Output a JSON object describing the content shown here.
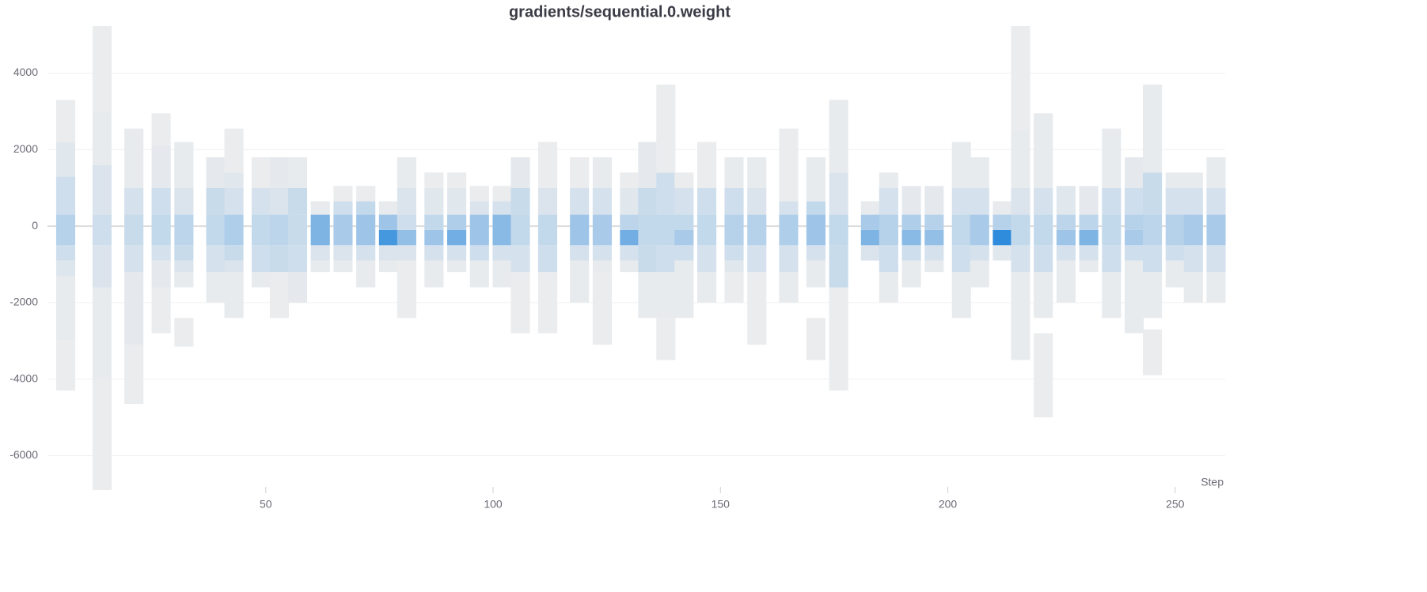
{
  "chart_data": {
    "type": "histogram-heatmap",
    "title": "gradients/sequential.0.weight",
    "x_label": "Step",
    "xlim": [
      2,
      261
    ],
    "xticks": [
      50,
      100,
      150,
      200,
      250
    ],
    "ylim": [
      -6900,
      5230
    ],
    "yticks": [
      4000,
      2000,
      0,
      -2000,
      -4000,
      -6000
    ],
    "grid": true,
    "color_scale": [
      "#eeeeee",
      "#a9cbe9",
      "#2f8bdb"
    ],
    "columns": [
      {
        "step": 6,
        "bins": [
          -4300,
          -3000,
          -1300,
          -900,
          -500,
          300,
          1300,
          2200,
          3300
        ],
        "counts": [
          1,
          2,
          5,
          10,
          18,
          10,
          4,
          1
        ]
      },
      {
        "step": 14,
        "bins": [
          -6900,
          -4000,
          -1600,
          -500,
          300,
          1600,
          3000,
          5230
        ],
        "counts": [
          1,
          2,
          6,
          10,
          6,
          2,
          1
        ]
      },
      {
        "step": 21,
        "bins": [
          -4650,
          -3100,
          -1200,
          -500,
          300,
          1000,
          2550
        ],
        "counts": [
          1,
          3,
          8,
          12,
          8,
          2
        ]
      },
      {
        "step": 27,
        "bins": [
          -2800,
          -1600,
          -900,
          -500,
          300,
          1000,
          2100,
          2950
        ],
        "counts": [
          1,
          3,
          8,
          14,
          10,
          3,
          1
        ]
      },
      {
        "step": 32,
        "bins": [
          -3150,
          -2400,
          -1600,
          -1200,
          -900,
          -500,
          300,
          1000,
          2200
        ],
        "counts": [
          1,
          0,
          2,
          6,
          12,
          16,
          6,
          2
        ]
      },
      {
        "step": 39,
        "bins": [
          -2000,
          -1200,
          -500,
          300,
          1000,
          1800
        ],
        "counts": [
          2,
          8,
          14,
          12,
          3
        ]
      },
      {
        "step": 43,
        "bins": [
          -2400,
          -1200,
          -900,
          -500,
          300,
          1000,
          1400,
          2550
        ],
        "counts": [
          2,
          6,
          12,
          20,
          8,
          4,
          1
        ]
      },
      {
        "step": 49,
        "bins": [
          -1600,
          -1200,
          -500,
          300,
          1000,
          1800
        ],
        "counts": [
          2,
          10,
          14,
          8,
          1
        ]
      },
      {
        "step": 53,
        "bins": [
          -2400,
          -1200,
          -500,
          300,
          1000,
          1800
        ],
        "counts": [
          1,
          12,
          16,
          6,
          3
        ]
      },
      {
        "step": 57,
        "bins": [
          -2000,
          -1200,
          -500,
          300,
          1000,
          1800
        ],
        "counts": [
          3,
          10,
          12,
          12,
          2
        ]
      },
      {
        "step": 62,
        "bins": [
          -1200,
          -900,
          -500,
          300,
          650
        ],
        "counts": [
          2,
          6,
          30,
          2
        ]
      },
      {
        "step": 67,
        "bins": [
          -1200,
          -900,
          -500,
          300,
          650,
          1050
        ],
        "counts": [
          2,
          6,
          22,
          10,
          1
        ]
      },
      {
        "step": 72,
        "bins": [
          -1600,
          -900,
          -500,
          300,
          650,
          1050
        ],
        "counts": [
          2,
          8,
          24,
          14,
          1
        ]
      },
      {
        "step": 77,
        "bins": [
          -1200,
          -900,
          -500,
          -100,
          300,
          650
        ],
        "counts": [
          2,
          6,
          40,
          24,
          2
        ]
      },
      {
        "step": 81,
        "bins": [
          -2400,
          -900,
          -500,
          -100,
          300,
          1000,
          1800
        ],
        "counts": [
          1,
          6,
          26,
          10,
          6,
          2
        ]
      },
      {
        "step": 87,
        "bins": [
          -1600,
          -900,
          -500,
          -100,
          300,
          1000,
          1400
        ],
        "counts": [
          2,
          8,
          24,
          14,
          4,
          1
        ]
      },
      {
        "step": 92,
        "bins": [
          -1200,
          -900,
          -500,
          -100,
          300,
          1000,
          1400
        ],
        "counts": [
          2,
          8,
          32,
          20,
          4,
          1
        ]
      },
      {
        "step": 97,
        "bins": [
          -1600,
          -900,
          -500,
          300,
          650,
          1050
        ],
        "counts": [
          2,
          10,
          24,
          6,
          1
        ]
      },
      {
        "step": 102,
        "bins": [
          -1600,
          -900,
          -500,
          300,
          650,
          1050
        ],
        "counts": [
          2,
          8,
          28,
          8,
          1
        ]
      },
      {
        "step": 106,
        "bins": [
          -2800,
          -1200,
          -500,
          300,
          1000,
          1800
        ],
        "counts": [
          1,
          8,
          14,
          12,
          3
        ]
      },
      {
        "step": 112,
        "bins": [
          -2800,
          -1200,
          -500,
          300,
          1000,
          2200
        ],
        "counts": [
          1,
          10,
          14,
          6,
          1
        ]
      },
      {
        "step": 119,
        "bins": [
          -2000,
          -900,
          -500,
          300,
          1000,
          1800
        ],
        "counts": [
          2,
          8,
          24,
          8,
          1
        ]
      },
      {
        "step": 124,
        "bins": [
          -3100,
          -1200,
          -900,
          -500,
          300,
          1000,
          1800
        ],
        "counts": [
          1,
          2,
          8,
          22,
          8,
          2
        ]
      },
      {
        "step": 130,
        "bins": [
          -1200,
          -900,
          -500,
          -100,
          300,
          1000,
          1400
        ],
        "counts": [
          2,
          8,
          32,
          16,
          4,
          1
        ]
      },
      {
        "step": 134,
        "bins": [
          -2400,
          -1200,
          -500,
          300,
          1000,
          2200
        ],
        "counts": [
          2,
          12,
          14,
          12,
          3
        ]
      },
      {
        "step": 138,
        "bins": [
          -3500,
          -2400,
          -1200,
          -500,
          300,
          1400,
          3700
        ],
        "counts": [
          1,
          2,
          10,
          14,
          10,
          1
        ]
      },
      {
        "step": 142,
        "bins": [
          -2400,
          -900,
          -500,
          -100,
          300,
          1000,
          1400
        ],
        "counts": [
          2,
          10,
          22,
          14,
          8,
          1
        ]
      },
      {
        "step": 147,
        "bins": [
          -2000,
          -1200,
          -500,
          300,
          1000,
          2200
        ],
        "counts": [
          2,
          8,
          14,
          10,
          1
        ]
      },
      {
        "step": 153,
        "bins": [
          -2000,
          -1200,
          -900,
          -500,
          300,
          1000,
          1800
        ],
        "counts": [
          1,
          4,
          10,
          18,
          10,
          2
        ]
      },
      {
        "step": 158,
        "bins": [
          -3100,
          -1200,
          -500,
          300,
          1000,
          1800
        ],
        "counts": [
          1,
          8,
          18,
          6,
          2
        ]
      },
      {
        "step": 165,
        "bins": [
          -2000,
          -1200,
          -500,
          300,
          650,
          2550
        ],
        "counts": [
          2,
          8,
          20,
          8,
          1
        ]
      },
      {
        "step": 171,
        "bins": [
          -3500,
          -2400,
          -1600,
          -900,
          -500,
          300,
          650,
          1800
        ],
        "counts": [
          1,
          0,
          2,
          8,
          24,
          14,
          2
        ]
      },
      {
        "step": 176,
        "bins": [
          -4300,
          -1600,
          -500,
          300,
          1400,
          3300
        ],
        "counts": [
          1,
          12,
          14,
          6,
          2
        ]
      },
      {
        "step": 183,
        "bins": [
          -900,
          -500,
          -100,
          300,
          650
        ],
        "counts": [
          6,
          30,
          22,
          2
        ]
      },
      {
        "step": 187,
        "bins": [
          -2000,
          -1200,
          -500,
          300,
          1000,
          1400
        ],
        "counts": [
          2,
          10,
          18,
          8,
          2
        ]
      },
      {
        "step": 192,
        "bins": [
          -1600,
          -900,
          -500,
          -100,
          300,
          1050
        ],
        "counts": [
          2,
          10,
          28,
          20,
          3
        ]
      },
      {
        "step": 197,
        "bins": [
          -1200,
          -900,
          -500,
          -100,
          300,
          1050
        ],
        "counts": [
          2,
          8,
          26,
          18,
          3
        ]
      },
      {
        "step": 203,
        "bins": [
          -2400,
          -1200,
          -500,
          300,
          1000,
          2200
        ],
        "counts": [
          2,
          10,
          14,
          8,
          2
        ]
      },
      {
        "step": 207,
        "bins": [
          -1600,
          -900,
          -500,
          300,
          1000,
          1800
        ],
        "counts": [
          2,
          8,
          22,
          8,
          2
        ]
      },
      {
        "step": 212,
        "bins": [
          -900,
          -500,
          -100,
          300,
          650
        ],
        "counts": [
          4,
          44,
          18,
          2
        ]
      },
      {
        "step": 216,
        "bins": [
          -3500,
          -1200,
          -500,
          300,
          1000,
          2500,
          5230
        ],
        "counts": [
          2,
          8,
          14,
          6,
          2,
          1
        ]
      },
      {
        "step": 221,
        "bins": [
          -5000,
          -2800,
          -2400,
          -1200,
          -500,
          300,
          1000,
          2950
        ],
        "counts": [
          1,
          0,
          2,
          10,
          14,
          8,
          2
        ]
      },
      {
        "step": 226,
        "bins": [
          -2000,
          -900,
          -500,
          -100,
          300,
          1050
        ],
        "counts": [
          2,
          8,
          24,
          16,
          4
        ]
      },
      {
        "step": 231,
        "bins": [
          -1200,
          -900,
          -500,
          -100,
          300,
          1050
        ],
        "counts": [
          2,
          8,
          30,
          16,
          3
        ]
      },
      {
        "step": 236,
        "bins": [
          -2400,
          -1200,
          -500,
          300,
          1000,
          2550
        ],
        "counts": [
          2,
          10,
          14,
          10,
          2
        ]
      },
      {
        "step": 241,
        "bins": [
          -2800,
          -900,
          -500,
          -100,
          300,
          1000,
          1800
        ],
        "counts": [
          2,
          10,
          22,
          18,
          10,
          3
        ]
      },
      {
        "step": 245,
        "bins": [
          -3900,
          -2700,
          -2400,
          -1200,
          -500,
          300,
          1400,
          3700
        ],
        "counts": [
          1,
          0,
          2,
          10,
          16,
          12,
          2
        ]
      },
      {
        "step": 250,
        "bins": [
          -1600,
          -900,
          -500,
          300,
          1000,
          1400
        ],
        "counts": [
          2,
          10,
          18,
          8,
          2
        ]
      },
      {
        "step": 254,
        "bins": [
          -2000,
          -1200,
          -500,
          300,
          1000,
          1400
        ],
        "counts": [
          2,
          8,
          22,
          8,
          2
        ]
      },
      {
        "step": 259,
        "bins": [
          -2000,
          -1200,
          -500,
          300,
          1000,
          1800
        ],
        "counts": [
          2,
          8,
          22,
          8,
          2
        ]
      }
    ]
  }
}
